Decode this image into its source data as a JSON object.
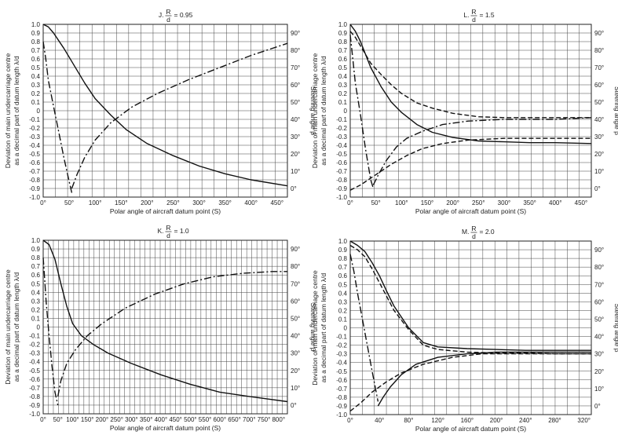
{
  "charts": [
    {
      "title_prefix": "J.",
      "title_num": "R",
      "title_den": "d",
      "title_value": "= 0.95",
      "xlabel": "Polar angle of aircraft datum point (S)",
      "ylabel_left_1": "Deviation of main undercarriage centre",
      "ylabel_left_2": "as a decimal part of datum length λ/d",
      "ylabel_right": "Steering angle β",
      "x_ticks": [
        "0°",
        "50°",
        "100°",
        "150°",
        "200°",
        "250°",
        "300°",
        "350°",
        "400°",
        "450°"
      ],
      "y_ticks": [
        "1.0",
        "0.9",
        "0.8",
        "0.7",
        "0.6",
        "0.5",
        "0.4",
        "0.3",
        "0.2",
        "0.1",
        "0",
        "-0.1",
        "-0.2",
        "-0.3",
        "-0.4",
        "-0.5",
        "-0.6",
        "-0.7",
        "-0.8",
        "-0.9",
        "-1.0"
      ],
      "y2_ticks": [
        "90°",
        "80°",
        "70°",
        "60°",
        "50°",
        "40°",
        "30°",
        "20°",
        "10°",
        "0°"
      ]
    },
    {
      "title_prefix": "L.",
      "title_num": "R",
      "title_den": "d",
      "title_value": "= 1.5",
      "xlabel": "Polar angle of aircraft datum point (S)",
      "ylabel_left_1": "Deviation of main undercarriage centre",
      "ylabel_left_2": "as a decimal part of datum length λ/d",
      "ylabel_right": "Steering angle β",
      "x_ticks": [
        "0°",
        "50°",
        "100°",
        "150°",
        "200°",
        "250°",
        "300°",
        "350°",
        "400°",
        "450°"
      ],
      "y_ticks": [
        "1.0",
        "0.9",
        "0.8",
        "0.7",
        "0.6",
        "0.5",
        "0.4",
        "0.3",
        "0.2",
        "0.1",
        "0",
        "-0.1",
        "-0.2",
        "-0.3",
        "-0.4",
        "-0.5",
        "-0.6",
        "-0.7",
        "-0.8",
        "-0.9",
        "-1.0"
      ],
      "y2_ticks": [
        "90°",
        "80°",
        "70°",
        "60°",
        "50°",
        "40°",
        "30°",
        "20°",
        "10°",
        "0°"
      ]
    },
    {
      "title_prefix": "K.",
      "title_num": "R",
      "title_den": "d",
      "title_value": "= 1.0",
      "xlabel": "Polar angle of aircraft datum point (S)",
      "ylabel_left_1": "Deviation of main undercarriage centre",
      "ylabel_left_2": "as a decimal part of datum length λ/d",
      "ylabel_right": "Steering angle β",
      "x_ticks": [
        "0°",
        "50°",
        "100°",
        "150°",
        "200°",
        "250°",
        "300°",
        "350°",
        "400°",
        "450°",
        "500°",
        "550°",
        "600°",
        "650°",
        "700°",
        "750°",
        "800°"
      ],
      "y_ticks": [
        "1.0",
        "0.9",
        "0.8",
        "0.7",
        "0.6",
        "0.5",
        "0.4",
        "0.3",
        "0.2",
        "0.1",
        "0",
        "-0.1",
        "-0.2",
        "-0.3",
        "-0.4",
        "-0.5",
        "-0.6",
        "-0.7",
        "-0.8",
        "-0.9",
        "-1.0"
      ],
      "y2_ticks": [
        "90°",
        "80°",
        "70°",
        "60°",
        "50°",
        "40°",
        "30°",
        "20°",
        "10°",
        "0°"
      ]
    },
    {
      "title_prefix": "M.",
      "title_num": "R",
      "title_den": "d",
      "title_value": "= 2.0",
      "xlabel": "Polar angle of aircraft datum point (S)",
      "ylabel_left_1": "Deviation of main undercarriage centre",
      "ylabel_left_2": "as a decimal part of datum length λ/d",
      "ylabel_right": "Steering angle β",
      "x_ticks": [
        "0°",
        "40°",
        "80°",
        "120°",
        "160°",
        "200°",
        "240°",
        "280°",
        "320°"
      ],
      "y_ticks": [
        "1.0",
        "0.9",
        "0.8",
        "0.7",
        "0.6",
        "0.5",
        "0.4",
        "0.3",
        "0.2",
        "0.1",
        "0",
        "-0.1",
        "-0.2",
        "-0.3",
        "-0.4",
        "-0.5",
        "-0.6",
        "-0.7",
        "-0.8",
        "-0.9",
        "-1.0"
      ],
      "y2_ticks": [
        "90°",
        "80°",
        "70°",
        "60°",
        "50°",
        "40°",
        "30°",
        "20°",
        "10°",
        "0°"
      ]
    }
  ],
  "chart_data": [
    {
      "type": "line",
      "xlim": [
        0,
        470
      ],
      "ylim": [
        -1.0,
        1.0
      ],
      "y2lim": [
        -5,
        95
      ],
      "grid": true,
      "series": [
        {
          "style": "solid",
          "axis": "left",
          "x": [
            0,
            10,
            20,
            40,
            60,
            80,
            100,
            130,
            160,
            200,
            250,
            300,
            350,
            400,
            470
          ],
          "y": [
            1.0,
            0.97,
            0.9,
            0.72,
            0.52,
            0.32,
            0.14,
            -0.05,
            -0.22,
            -0.38,
            -0.52,
            -0.64,
            -0.73,
            -0.8,
            -0.87
          ]
        },
        {
          "style": "dash-dot",
          "axis": "left",
          "x": [
            0,
            5,
            10,
            20,
            30,
            40,
            50,
            55
          ],
          "y": [
            0.8,
            0.6,
            0.35,
            0.05,
            -0.25,
            -0.55,
            -0.82,
            -0.95
          ]
        },
        {
          "style": "dash-dot",
          "axis": "right",
          "x": [
            55,
            65,
            80,
            100,
            130,
            170,
            220,
            280,
            340,
            400,
            470
          ],
          "y": [
            0,
            8,
            18,
            28,
            38,
            47,
            55,
            63,
            70,
            77,
            84
          ]
        }
      ]
    },
    {
      "type": "line",
      "xlim": [
        0,
        470
      ],
      "ylim": [
        -1.0,
        1.0
      ],
      "y2lim": [
        -5,
        95
      ],
      "grid": true,
      "series": [
        {
          "style": "solid",
          "axis": "left",
          "x": [
            0,
            10,
            20,
            40,
            60,
            80,
            100,
            130,
            160,
            200,
            250,
            300,
            350,
            400,
            470
          ],
          "y": [
            1.0,
            0.92,
            0.8,
            0.5,
            0.28,
            0.1,
            -0.02,
            -0.16,
            -0.25,
            -0.31,
            -0.35,
            -0.36,
            -0.37,
            -0.37,
            -0.38
          ]
        },
        {
          "style": "dash",
          "axis": "left",
          "x": [
            0,
            10,
            20,
            40,
            60,
            80,
            100,
            130,
            160,
            200,
            250,
            300,
            350,
            400,
            470
          ],
          "y": [
            0.92,
            0.85,
            0.75,
            0.55,
            0.42,
            0.3,
            0.2,
            0.09,
            0.03,
            -0.03,
            -0.07,
            -0.08,
            -0.08,
            -0.08,
            -0.08
          ]
        },
        {
          "style": "dash-dot",
          "axis": "left",
          "x": [
            0,
            5,
            10,
            20,
            30,
            40,
            45
          ],
          "y": [
            0.88,
            0.6,
            0.32,
            -0.05,
            -0.45,
            -0.8,
            -0.9
          ]
        },
        {
          "style": "dash-dot",
          "axis": "right",
          "x": [
            45,
            55,
            70,
            90,
            110,
            140,
            180,
            230,
            300,
            400,
            470
          ],
          "y": [
            2,
            8,
            16,
            24,
            29,
            33,
            37,
            39,
            40,
            40,
            41
          ]
        },
        {
          "style": "dash",
          "axis": "right",
          "x": [
            0,
            20,
            50,
            80,
            110,
            140,
            180,
            230,
            300,
            400,
            470
          ],
          "y": [
            -1,
            2,
            8,
            14,
            19,
            23,
            26,
            28,
            29,
            29,
            29
          ]
        }
      ]
    },
    {
      "type": "line",
      "xlim": [
        0,
        830
      ],
      "ylim": [
        -1.0,
        1.0
      ],
      "y2lim": [
        -5,
        95
      ],
      "grid": true,
      "series": [
        {
          "style": "solid",
          "axis": "left",
          "x": [
            0,
            20,
            40,
            60,
            80,
            100,
            130,
            170,
            220,
            300,
            400,
            500,
            600,
            700,
            830
          ],
          "y": [
            1.0,
            0.95,
            0.78,
            0.5,
            0.24,
            0.04,
            -0.1,
            -0.2,
            -0.3,
            -0.42,
            -0.55,
            -0.66,
            -0.75,
            -0.8,
            -0.86
          ]
        },
        {
          "style": "dash-dot",
          "axis": "left",
          "x": [
            0,
            5,
            10,
            20,
            30,
            40,
            50
          ],
          "y": [
            0.8,
            0.55,
            0.3,
            -0.1,
            -0.45,
            -0.75,
            -0.9
          ]
        },
        {
          "style": "dash-dot",
          "axis": "right",
          "x": [
            50,
            60,
            80,
            110,
            150,
            200,
            280,
            380,
            480,
            580,
            680,
            780,
            830
          ],
          "y": [
            5,
            14,
            24,
            32,
            40,
            47,
            56,
            64,
            70,
            74,
            76,
            77,
            77
          ]
        }
      ]
    },
    {
      "type": "line",
      "xlim": [
        0,
        330
      ],
      "ylim": [
        -1.0,
        1.0
      ],
      "y2lim": [
        -5,
        95
      ],
      "grid": true,
      "series": [
        {
          "style": "solid",
          "axis": "left",
          "x": [
            0,
            10,
            20,
            30,
            40,
            50,
            60,
            80,
            100,
            120,
            160,
            200,
            240,
            280,
            330
          ],
          "y": [
            1.0,
            0.95,
            0.88,
            0.75,
            0.6,
            0.42,
            0.25,
            0.0,
            -0.17,
            -0.22,
            -0.24,
            -0.25,
            -0.26,
            -0.26,
            -0.26
          ]
        },
        {
          "style": "dash",
          "axis": "left",
          "x": [
            0,
            10,
            20,
            30,
            40,
            50,
            60,
            80,
            100,
            120,
            160,
            200,
            240,
            280,
            330
          ],
          "y": [
            0.95,
            0.9,
            0.82,
            0.68,
            0.52,
            0.36,
            0.2,
            -0.02,
            -0.2,
            -0.25,
            -0.28,
            -0.29,
            -0.29,
            -0.3,
            -0.3
          ]
        },
        {
          "style": "dash-dot",
          "axis": "left",
          "x": [
            0,
            5,
            10,
            20,
            30,
            38
          ],
          "y": [
            0.85,
            0.65,
            0.4,
            -0.05,
            -0.5,
            -0.85
          ]
        },
        {
          "style": "solid",
          "axis": "right",
          "x": [
            38,
            45,
            55,
            70,
            90,
            120,
            160,
            200,
            250,
            330
          ],
          "y": [
            0,
            5,
            11,
            18,
            24,
            28,
            30,
            31,
            31,
            31
          ]
        },
        {
          "style": "dash",
          "axis": "right",
          "x": [
            0,
            15,
            30,
            50,
            70,
            100,
            140,
            180,
            230,
            330
          ],
          "y": [
            -3,
            2,
            8,
            14,
            19,
            24,
            28,
            30,
            30,
            30
          ]
        }
      ]
    }
  ]
}
